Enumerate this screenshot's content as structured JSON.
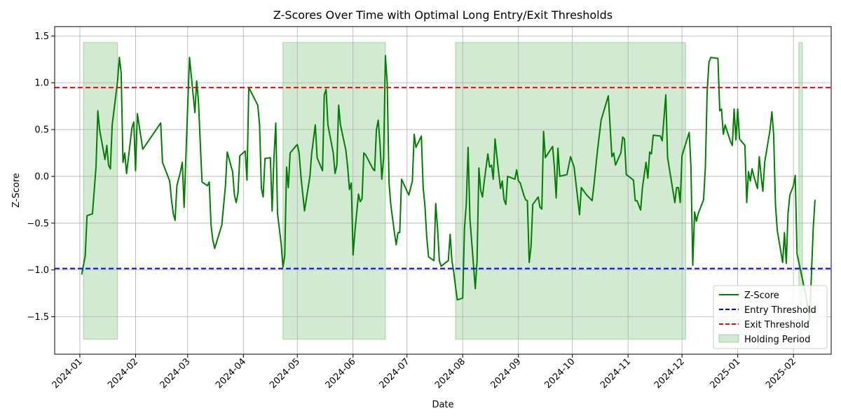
{
  "chart_data": {
    "type": "line",
    "title": "Z-Scores Over Time with Optimal Long Entry/Exit Thresholds",
    "xlabel": "Date",
    "ylabel": "Z-Score",
    "xlim": [
      "2023-12-18",
      "2025-02-22"
    ],
    "ylim": [
      -1.9,
      1.6
    ],
    "x_ticks": [
      "2024-01",
      "2024-02",
      "2024-03",
      "2024-04",
      "2024-05",
      "2024-06",
      "2024-07",
      "2024-08",
      "2024-09",
      "2024-10",
      "2024-11",
      "2024-12",
      "2025-01",
      "2025-02"
    ],
    "y_ticks": [
      "1.5",
      "1.0",
      "0.5",
      "0.0",
      "−0.5",
      "−1.0",
      "−1.5"
    ],
    "y_tick_values": [
      1.5,
      1.0,
      0.5,
      0.0,
      -0.5,
      -1.0,
      -1.5
    ],
    "grid": true,
    "legend_position": "lower right",
    "entry_threshold": -0.985,
    "exit_threshold": 0.948,
    "holding_periods": [
      [
        "2024-01-03",
        "2024-01-22"
      ],
      [
        "2024-04-23",
        "2024-06-19"
      ],
      [
        "2024-07-28",
        "2024-12-03"
      ],
      [
        "2025-02-04",
        "2025-02-06"
      ]
    ],
    "holding_band": [
      -1.74,
      1.43
    ],
    "colors": {
      "zscore": "#008000",
      "entry": "#0000ff",
      "exit": "#ff0000",
      "holding": "#2ca02c"
    },
    "legend": [
      "Z-Score",
      "Entry Threshold",
      "Exit Threshold",
      "Holding Period"
    ],
    "series": [
      {
        "name": "Z-Score",
        "points": [
          [
            "2024-01-02",
            -1.05
          ],
          [
            "2024-01-04",
            -0.85
          ],
          [
            "2024-01-05",
            -0.42
          ],
          [
            "2024-01-08",
            -0.4
          ],
          [
            "2024-01-10",
            0.1
          ],
          [
            "2024-01-11",
            0.7
          ],
          [
            "2024-01-12",
            0.5
          ],
          [
            "2024-01-15",
            0.18
          ],
          [
            "2024-01-16",
            0.33
          ],
          [
            "2024-01-17",
            0.12
          ],
          [
            "2024-01-18",
            0.08
          ],
          [
            "2024-01-19",
            0.55
          ],
          [
            "2024-01-22",
            1.02
          ],
          [
            "2024-01-23",
            1.27
          ],
          [
            "2024-01-24",
            1.1
          ],
          [
            "2024-01-25",
            0.15
          ],
          [
            "2024-01-26",
            0.25
          ],
          [
            "2024-01-27",
            0.03
          ],
          [
            "2024-01-30",
            0.52
          ],
          [
            "2024-01-31",
            0.58
          ],
          [
            "2024-02-01",
            0.06
          ],
          [
            "2024-02-02",
            0.67
          ],
          [
            "2024-02-05",
            0.29
          ],
          [
            "2024-02-15",
            0.57
          ],
          [
            "2024-02-16",
            0.15
          ],
          [
            "2024-02-20",
            -0.05
          ],
          [
            "2024-02-21",
            -0.25
          ],
          [
            "2024-02-22",
            -0.4
          ],
          [
            "2024-02-23",
            -0.47
          ],
          [
            "2024-02-24",
            -0.1
          ],
          [
            "2024-02-26",
            0.05
          ],
          [
            "2024-02-27",
            0.15
          ],
          [
            "2024-02-28",
            -0.33
          ],
          [
            "2024-02-29",
            0.2
          ],
          [
            "2024-03-01",
            0.75
          ],
          [
            "2024-03-02",
            1.27
          ],
          [
            "2024-03-05",
            0.68
          ],
          [
            "2024-03-06",
            1.02
          ],
          [
            "2024-03-07",
            0.8
          ],
          [
            "2024-03-08",
            0.35
          ],
          [
            "2024-03-09",
            -0.06
          ],
          [
            "2024-03-12",
            -0.1
          ],
          [
            "2024-03-13",
            -0.06
          ],
          [
            "2024-03-14",
            -0.52
          ],
          [
            "2024-03-15",
            -0.68
          ],
          [
            "2024-03-16",
            -0.77
          ],
          [
            "2024-03-20",
            -0.52
          ],
          [
            "2024-03-22",
            -0.1
          ],
          [
            "2024-03-23",
            0.26
          ],
          [
            "2024-03-26",
            0.05
          ],
          [
            "2024-03-27",
            -0.2
          ],
          [
            "2024-03-28",
            -0.28
          ],
          [
            "2024-03-29",
            -0.18
          ],
          [
            "2024-03-30",
            0.22
          ],
          [
            "2024-04-02",
            0.27
          ],
          [
            "2024-04-03",
            -0.04
          ],
          [
            "2024-04-04",
            0.95
          ],
          [
            "2024-04-09",
            0.76
          ],
          [
            "2024-04-10",
            0.55
          ],
          [
            "2024-04-11",
            -0.13
          ],
          [
            "2024-04-12",
            -0.22
          ],
          [
            "2024-04-13",
            0.19
          ],
          [
            "2024-04-16",
            0.2
          ],
          [
            "2024-04-17",
            -0.37
          ],
          [
            "2024-04-18",
            0.2
          ],
          [
            "2024-04-19",
            0.57
          ],
          [
            "2024-04-20",
            -0.4
          ],
          [
            "2024-04-22",
            -0.72
          ],
          [
            "2024-04-23",
            -0.97
          ],
          [
            "2024-04-24",
            -0.85
          ],
          [
            "2024-04-25",
            0.1
          ],
          [
            "2024-04-26",
            -0.12
          ],
          [
            "2024-04-27",
            0.25
          ],
          [
            "2024-04-30",
            0.32
          ],
          [
            "2024-05-01",
            0.34
          ],
          [
            "2024-05-02",
            0.25
          ],
          [
            "2024-05-03",
            0.0
          ],
          [
            "2024-05-05",
            -0.37
          ],
          [
            "2024-05-08",
            0.0
          ],
          [
            "2024-05-09",
            0.25
          ],
          [
            "2024-05-11",
            0.55
          ],
          [
            "2024-05-12",
            0.2
          ],
          [
            "2024-05-15",
            0.06
          ],
          [
            "2024-05-16",
            0.87
          ],
          [
            "2024-05-17",
            0.93
          ],
          [
            "2024-05-18",
            0.55
          ],
          [
            "2024-05-21",
            0.25
          ],
          [
            "2024-05-22",
            0.03
          ],
          [
            "2024-05-23",
            0.12
          ],
          [
            "2024-05-24",
            0.76
          ],
          [
            "2024-05-25",
            0.55
          ],
          [
            "2024-05-28",
            0.28
          ],
          [
            "2024-05-29",
            0.1
          ],
          [
            "2024-05-30",
            -0.14
          ],
          [
            "2024-05-31",
            -0.07
          ],
          [
            "2024-06-01",
            -0.84
          ],
          [
            "2024-06-02",
            -0.6
          ],
          [
            "2024-06-04",
            -0.19
          ],
          [
            "2024-06-05",
            -0.27
          ],
          [
            "2024-06-06",
            -0.24
          ],
          [
            "2024-06-07",
            0.25
          ],
          [
            "2024-06-08",
            0.23
          ],
          [
            "2024-06-12",
            0.08
          ],
          [
            "2024-06-13",
            0.06
          ],
          [
            "2024-06-14",
            0.5
          ],
          [
            "2024-06-15",
            0.6
          ],
          [
            "2024-06-16",
            0.35
          ],
          [
            "2024-06-17",
            -0.03
          ],
          [
            "2024-06-18",
            0.2
          ],
          [
            "2024-06-19",
            1.29
          ],
          [
            "2024-06-20",
            1.0
          ],
          [
            "2024-06-21",
            -0.07
          ],
          [
            "2024-06-22",
            -0.3
          ],
          [
            "2024-06-24",
            -0.6
          ],
          [
            "2024-06-25",
            -0.73
          ],
          [
            "2024-06-26",
            -0.6
          ],
          [
            "2024-06-27",
            -0.6
          ],
          [
            "2024-06-28",
            -0.03
          ],
          [
            "2024-07-02",
            -0.2
          ],
          [
            "2024-07-04",
            -0.05
          ],
          [
            "2024-07-05",
            0.45
          ],
          [
            "2024-07-06",
            0.31
          ],
          [
            "2024-07-09",
            0.43
          ],
          [
            "2024-07-10",
            -0.12
          ],
          [
            "2024-07-11",
            -0.32
          ],
          [
            "2024-07-12",
            -0.65
          ],
          [
            "2024-07-13",
            -0.86
          ],
          [
            "2024-07-16",
            -0.9
          ],
          [
            "2024-07-17",
            -0.29
          ],
          [
            "2024-07-18",
            -0.55
          ],
          [
            "2024-07-19",
            -0.9
          ],
          [
            "2024-07-20",
            -0.96
          ],
          [
            "2024-07-24",
            -0.9
          ],
          [
            "2024-07-25",
            -0.62
          ],
          [
            "2024-07-26",
            -0.9
          ],
          [
            "2024-07-27",
            -1.02
          ],
          [
            "2024-07-28",
            -1.18
          ],
          [
            "2024-07-29",
            -1.32
          ],
          [
            "2024-08-01",
            -1.3
          ],
          [
            "2024-08-02",
            -0.55
          ],
          [
            "2024-08-03",
            -0.3
          ],
          [
            "2024-08-04",
            0.31
          ],
          [
            "2024-08-05",
            -0.45
          ],
          [
            "2024-08-08",
            -1.2
          ],
          [
            "2024-08-09",
            -0.9
          ],
          [
            "2024-08-10",
            0.09
          ],
          [
            "2024-08-11",
            -0.15
          ],
          [
            "2024-08-12",
            -0.22
          ],
          [
            "2024-08-13",
            -0.05
          ],
          [
            "2024-08-15",
            0.24
          ],
          [
            "2024-08-16",
            0.1
          ],
          [
            "2024-08-17",
            0.12
          ],
          [
            "2024-08-18",
            -0.03
          ],
          [
            "2024-08-19",
            0.4
          ],
          [
            "2024-08-20",
            0.22
          ],
          [
            "2024-08-22",
            -0.13
          ],
          [
            "2024-08-23",
            -0.05
          ],
          [
            "2024-08-24",
            -0.25
          ],
          [
            "2024-08-25",
            -0.3
          ],
          [
            "2024-08-26",
            0.0
          ],
          [
            "2024-08-30",
            -0.03
          ],
          [
            "2024-08-31",
            0.07
          ],
          [
            "2024-09-01",
            -0.05
          ],
          [
            "2024-09-02",
            -0.07
          ],
          [
            "2024-09-04",
            -0.2
          ],
          [
            "2024-09-05",
            -0.25
          ],
          [
            "2024-09-06",
            -0.26
          ],
          [
            "2024-09-07",
            -0.92
          ],
          [
            "2024-09-08",
            -0.75
          ],
          [
            "2024-09-09",
            -0.3
          ],
          [
            "2024-09-12",
            -0.22
          ],
          [
            "2024-09-13",
            -0.33
          ],
          [
            "2024-09-14",
            -0.35
          ],
          [
            "2024-09-15",
            0.48
          ],
          [
            "2024-09-16",
            0.2
          ],
          [
            "2024-09-20",
            0.32
          ],
          [
            "2024-09-21",
            0.1
          ],
          [
            "2024-09-22",
            -0.23
          ],
          [
            "2024-09-23",
            0.3
          ],
          [
            "2024-09-24",
            0.0
          ],
          [
            "2024-09-28",
            0.02
          ],
          [
            "2024-09-30",
            0.21
          ],
          [
            "2024-10-02",
            0.1
          ],
          [
            "2024-10-05",
            -0.41
          ],
          [
            "2024-10-06",
            -0.12
          ],
          [
            "2024-10-09",
            -0.2
          ],
          [
            "2024-10-12",
            -0.26
          ],
          [
            "2024-10-13",
            -0.1
          ],
          [
            "2024-10-15",
            0.28
          ],
          [
            "2024-10-17",
            0.6
          ],
          [
            "2024-10-21",
            0.86
          ],
          [
            "2024-10-23",
            0.21
          ],
          [
            "2024-10-24",
            0.25
          ],
          [
            "2024-10-25",
            0.12
          ],
          [
            "2024-10-28",
            0.25
          ],
          [
            "2024-10-29",
            0.42
          ],
          [
            "2024-10-30",
            0.4
          ],
          [
            "2024-10-31",
            0.02
          ],
          [
            "2024-11-04",
            -0.04
          ],
          [
            "2024-11-05",
            -0.26
          ],
          [
            "2024-11-06",
            -0.26
          ],
          [
            "2024-11-08",
            -0.36
          ],
          [
            "2024-11-09",
            -0.12
          ],
          [
            "2024-11-11",
            0.15
          ],
          [
            "2024-11-12",
            -0.02
          ],
          [
            "2024-11-13",
            0.26
          ],
          [
            "2024-11-14",
            0.24
          ],
          [
            "2024-11-15",
            0.44
          ],
          [
            "2024-11-19",
            0.43
          ],
          [
            "2024-11-20",
            0.38
          ],
          [
            "2024-11-22",
            0.87
          ],
          [
            "2024-11-23",
            0.2
          ],
          [
            "2024-11-27",
            -0.28
          ],
          [
            "2024-11-28",
            -0.12
          ],
          [
            "2024-11-29",
            -0.12
          ],
          [
            "2024-11-30",
            -0.28
          ],
          [
            "2024-12-01",
            0.22
          ],
          [
            "2024-12-05",
            0.47
          ],
          [
            "2024-12-06",
            0.1
          ],
          [
            "2024-12-07",
            -0.95
          ],
          [
            "2024-12-08",
            -0.38
          ],
          [
            "2024-12-09",
            -0.48
          ],
          [
            "2024-12-10",
            -0.4
          ],
          [
            "2024-12-13",
            -0.25
          ],
          [
            "2024-12-14",
            0.1
          ],
          [
            "2024-12-15",
            0.9
          ],
          [
            "2024-12-16",
            1.22
          ],
          [
            "2024-12-17",
            1.27
          ],
          [
            "2024-12-21",
            1.26
          ],
          [
            "2024-12-22",
            0.7
          ],
          [
            "2024-12-23",
            0.72
          ],
          [
            "2024-12-24",
            0.45
          ],
          [
            "2024-12-25",
            0.55
          ],
          [
            "2024-12-28",
            0.37
          ],
          [
            "2024-12-29",
            0.33
          ],
          [
            "2024-12-30",
            0.72
          ],
          [
            "2024-12-31",
            0.39
          ],
          [
            "2025-01-01",
            0.72
          ],
          [
            "2025-01-02",
            0.4
          ],
          [
            "2025-01-05",
            0.33
          ],
          [
            "2025-01-06",
            -0.28
          ],
          [
            "2025-01-07",
            0.05
          ],
          [
            "2025-01-08",
            -0.05
          ],
          [
            "2025-01-09",
            0.08
          ],
          [
            "2025-01-10",
            0.0
          ],
          [
            "2025-01-12",
            -0.13
          ],
          [
            "2025-01-13",
            0.21
          ],
          [
            "2025-01-14",
            0.0
          ],
          [
            "2025-01-15",
            -0.16
          ],
          [
            "2025-01-16",
            0.15
          ],
          [
            "2025-01-19",
            0.5
          ],
          [
            "2025-01-20",
            0.69
          ],
          [
            "2025-01-21",
            0.45
          ],
          [
            "2025-01-22",
            -0.3
          ],
          [
            "2025-01-23",
            -0.58
          ],
          [
            "2025-01-26",
            -0.92
          ],
          [
            "2025-01-27",
            -0.6
          ],
          [
            "2025-01-28",
            -0.93
          ],
          [
            "2025-01-29",
            -0.4
          ],
          [
            "2025-01-30",
            -0.2
          ],
          [
            "2025-02-01",
            -0.1
          ],
          [
            "2025-02-02",
            0.01
          ],
          [
            "2025-02-03",
            -0.83
          ],
          [
            "2025-02-06",
            -1.1
          ],
          [
            "2025-02-08",
            -1.28
          ],
          [
            "2025-02-10",
            -1.55
          ],
          [
            "2025-02-12",
            -0.55
          ],
          [
            "2025-02-13",
            -0.25
          ]
        ]
      }
    ]
  }
}
